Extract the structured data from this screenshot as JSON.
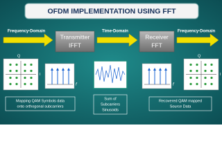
{
  "title": "OFDM IMPLEMENTATION USING FFT",
  "domain_labels": [
    "Frequency-Domain",
    "Time-Domain",
    "Frequency-Domain"
  ],
  "blocks": [
    {
      "lines": [
        "Transmitter",
        "IFFT"
      ]
    },
    {
      "lines": [
        "Receiver",
        "FFT"
      ]
    }
  ],
  "constellations": [
    {
      "q": "Q",
      "i": "I"
    },
    {
      "q": "Q",
      "i": "I"
    }
  ],
  "spectra": [
    {
      "f": "f"
    },
    {
      "f": "f"
    }
  ],
  "captions": [
    [
      "Mapping QAM Symbols data",
      "onto orthogonal subcarriers"
    ],
    [
      "Sum of",
      "Subcarriers",
      "Sinusoids"
    ],
    [
      "Recovered QAM mapped",
      "Source Data"
    ]
  ]
}
